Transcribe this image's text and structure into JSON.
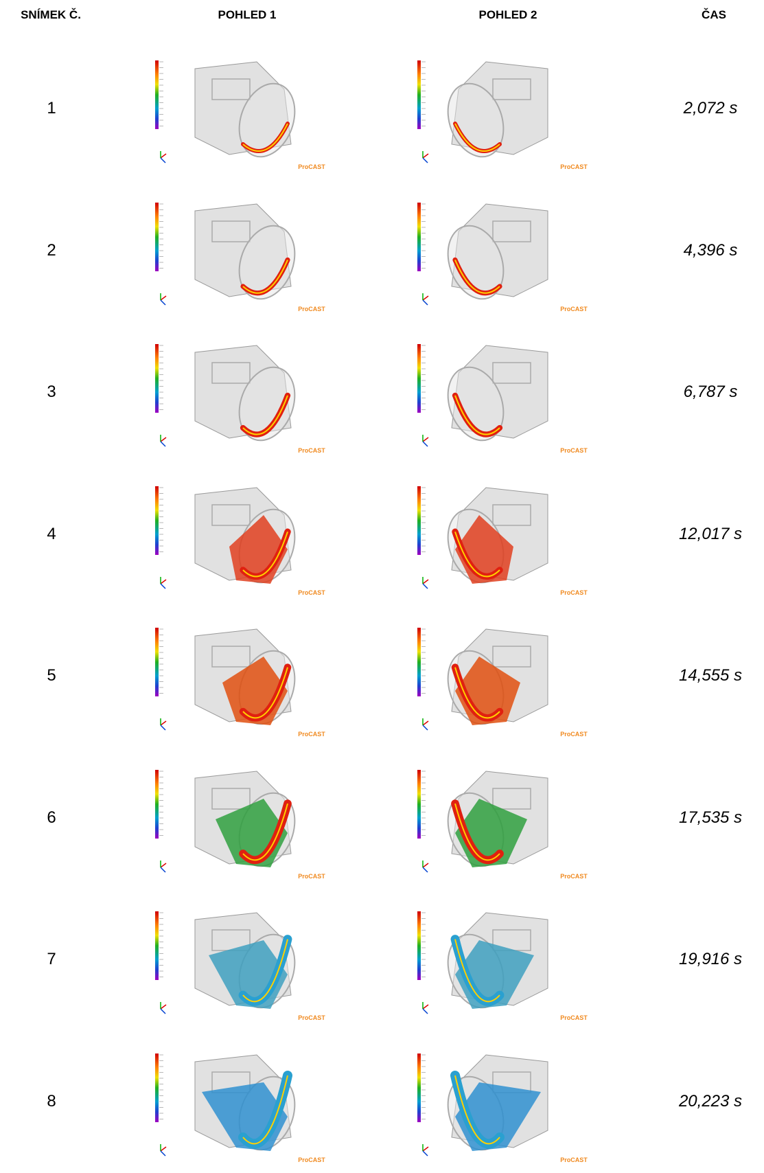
{
  "header": {
    "frame": "SNÍMEK Č.",
    "view1": "POHLED 1",
    "view2": "POHLED 2",
    "time": "ČAS"
  },
  "image_label": "ProCAST",
  "rows": [
    {
      "frame": "1",
      "time": "2,072 s"
    },
    {
      "frame": "2",
      "time": "4,396 s"
    },
    {
      "frame": "3",
      "time": "6,787 s"
    },
    {
      "frame": "4",
      "time": "12,017 s"
    },
    {
      "frame": "5",
      "time": "14,555 s"
    },
    {
      "frame": "6",
      "time": "17,535 s"
    },
    {
      "frame": "7",
      "time": "19,916 s"
    },
    {
      "frame": "8",
      "time": "20,223 s"
    }
  ]
}
